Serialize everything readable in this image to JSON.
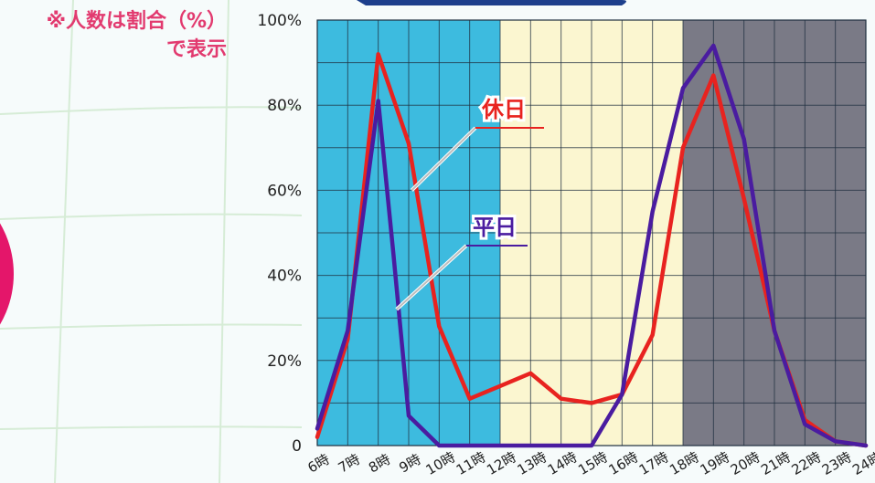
{
  "note": {
    "line1": "※人数は割合（%）",
    "line2": "で表示"
  },
  "chart_data": {
    "type": "line",
    "title": "",
    "xlabel": "",
    "ylabel": "",
    "categories": [
      "6時",
      "7時",
      "8時",
      "9時",
      "10時",
      "11時",
      "12時",
      "13時",
      "14時",
      "15時",
      "16時",
      "17時",
      "18時",
      "19時",
      "20時",
      "21時",
      "22時",
      "23時",
      "24時"
    ],
    "y_ticks": [
      "0",
      "20%",
      "40%",
      "60%",
      "80%",
      "100%"
    ],
    "ylim": [
      0,
      100
    ],
    "x_range": [
      6,
      24
    ],
    "grid": true,
    "background_bands": [
      {
        "from": 6,
        "to": 12,
        "color": "#3dbbdf"
      },
      {
        "from": 12,
        "to": 18,
        "color": "#fbf6d0"
      },
      {
        "from": 18,
        "to": 24,
        "color": "#7a7a86"
      }
    ],
    "series": [
      {
        "name": "休日",
        "color": "#e8231f",
        "x": [
          6,
          7,
          8,
          9,
          10,
          11,
          12,
          13,
          14,
          15,
          16,
          17,
          18,
          19,
          20,
          21,
          22,
          23,
          24
        ],
        "values": [
          2,
          25,
          92,
          71,
          28,
          11,
          14,
          17,
          11,
          10,
          12,
          26,
          70,
          87,
          58,
          27,
          6,
          1,
          0
        ]
      },
      {
        "name": "平日",
        "color": "#4a1ca0",
        "x": [
          6,
          7,
          8,
          8.5,
          9,
          10,
          11,
          12,
          13,
          14,
          15,
          16,
          17,
          18,
          19,
          20,
          21,
          22,
          23,
          24
        ],
        "values": [
          4,
          27,
          81,
          45,
          7,
          0,
          0,
          0,
          0,
          0,
          0,
          12,
          55,
          84,
          94,
          72,
          27,
          5,
          1,
          0
        ]
      }
    ]
  }
}
